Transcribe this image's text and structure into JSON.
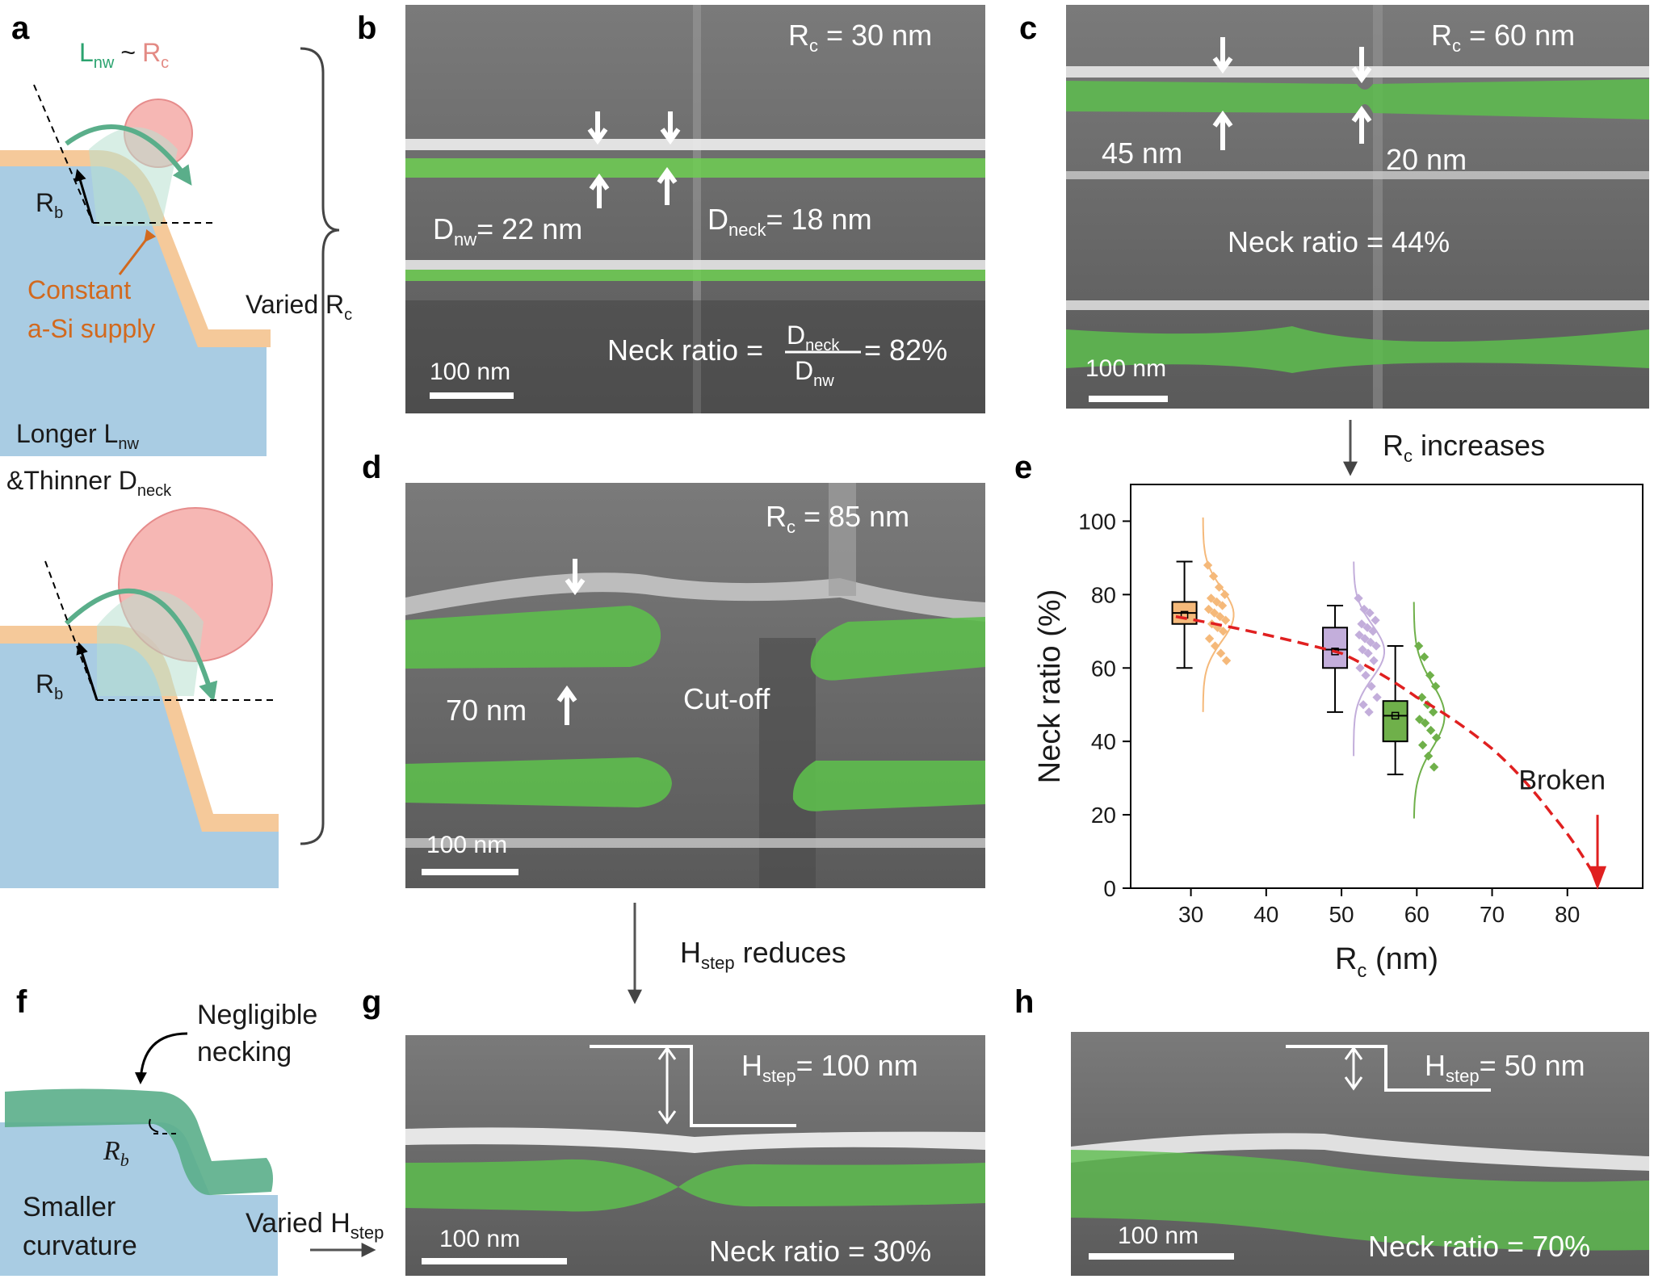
{
  "panel_letters": {
    "a": "a",
    "b": "b",
    "c": "c",
    "d": "d",
    "e": "e",
    "f": "f",
    "g": "g",
    "h": "h"
  },
  "panel_a": {
    "lnw": "L",
    "lnw_sub": "nw",
    "tilde": "~",
    "rc": "R",
    "rc_sub": "c",
    "rb": "R",
    "rb_sub": "b",
    "constant_l1": "Constant",
    "constant_l2": "a-Si supply",
    "varied_rc": "Varied R",
    "varied_rc_sub": "c",
    "longer": "Longer L",
    "longer_sub": "nw",
    "thinner": "&Thinner D",
    "thinner_sub": "neck",
    "rb2": "R",
    "rb2_sub": "b",
    "colors": {
      "substrate": "#a9cce3",
      "layer": "#f5c99a",
      "droplet": "#f4a6a2",
      "arrow": "#5aae8a",
      "constant": "#d2691e"
    }
  },
  "panel_b": {
    "rc_label": "R",
    "rc_sub": "c",
    "rc_value": " = 30 nm",
    "dnw": "D",
    "dnw_sub": "nw",
    "dnw_value": "= 22 nm",
    "dneck": "D",
    "dneck_sub": "neck",
    "dneck_value": "= 18 nm",
    "neck_ratio": "Neck ratio =",
    "frac_num": "D",
    "frac_num_sub": "neck",
    "frac_den": "D",
    "frac_den_sub": "nw",
    "ratio_value": "= 82%",
    "scale": "100 nm"
  },
  "panel_c": {
    "rc_label": "R",
    "rc_sub": "c",
    "rc_value": " = 60 nm",
    "d1": "45 nm",
    "d2": "20 nm",
    "neck_ratio": "Neck ratio = 44%",
    "scale": "100 nm"
  },
  "arrow_c_e": {
    "text": "R",
    "sub": "c",
    "rest": " increases"
  },
  "panel_d": {
    "rc_label": "R",
    "rc_sub": "c",
    "rc_value": " = 85 nm",
    "d1": "70 nm",
    "cutoff": "Cut-off",
    "scale": "100 nm"
  },
  "arrow_d_g": {
    "text": "H",
    "sub": "step",
    "rest": " reduces"
  },
  "panel_f": {
    "negligible_l1": "Negligible",
    "negligible_l2": "necking",
    "rb": "R",
    "rb_sub": "b",
    "smaller_l1": "Smaller",
    "smaller_l2": "curvature",
    "varied": "Varied H",
    "varied_sub": "step"
  },
  "panel_g": {
    "hstep": "H",
    "hstep_sub": "step",
    "hstep_value": "= 100 nm",
    "scale": "100 nm",
    "neck_ratio": "Neck ratio = 30%"
  },
  "panel_h": {
    "hstep": "H",
    "hstep_sub": "step",
    "hstep_value": "= 50 nm",
    "scale": "100 nm",
    "neck_ratio": "Neck ratio = 70%"
  },
  "chart_data": {
    "type": "box",
    "xlabel": "R",
    "xlabel_sub": "c",
    "xlabel_unit": " (nm)",
    "ylabel": "Neck ratio (%)",
    "xlim": [
      22,
      90
    ],
    "ylim": [
      0,
      110
    ],
    "xticks": [
      30,
      40,
      50,
      60,
      70,
      80
    ],
    "yticks": [
      0,
      20,
      40,
      60,
      80,
      100
    ],
    "boxes": [
      {
        "x": 30,
        "min": 60,
        "q1": 72,
        "median": 75,
        "mean": 74.5,
        "q3": 78,
        "max": 89,
        "color": "#f5b97a",
        "points": [
          88,
          85,
          82,
          80,
          79,
          78,
          77,
          76,
          75,
          74,
          73,
          72,
          71,
          70,
          68,
          66,
          64,
          62
        ]
      },
      {
        "x": 50,
        "min": 48,
        "q1": 60,
        "median": 65,
        "mean": 64.5,
        "q3": 71,
        "max": 77,
        "color": "#c3aedb",
        "points": [
          79,
          76,
          75,
          73,
          72,
          71,
          70,
          69,
          68,
          67,
          66,
          65,
          64,
          62,
          60,
          58,
          55,
          52,
          50,
          48
        ]
      },
      {
        "x": 58,
        "min": 31,
        "q1": 40,
        "median": 47,
        "mean": 47,
        "q3": 51,
        "max": 66,
        "color": "#6fb04a",
        "points": [
          66,
          63,
          58,
          55,
          52,
          50,
          48,
          46,
          45,
          43,
          41,
          39,
          36,
          33
        ]
      }
    ],
    "trend_points": [
      [
        28,
        74
      ],
      [
        50,
        64
      ],
      [
        60,
        52
      ],
      [
        70,
        38
      ],
      [
        78,
        20
      ],
      [
        84,
        2
      ]
    ],
    "broken_label": "Broken",
    "broken_x": 84
  }
}
